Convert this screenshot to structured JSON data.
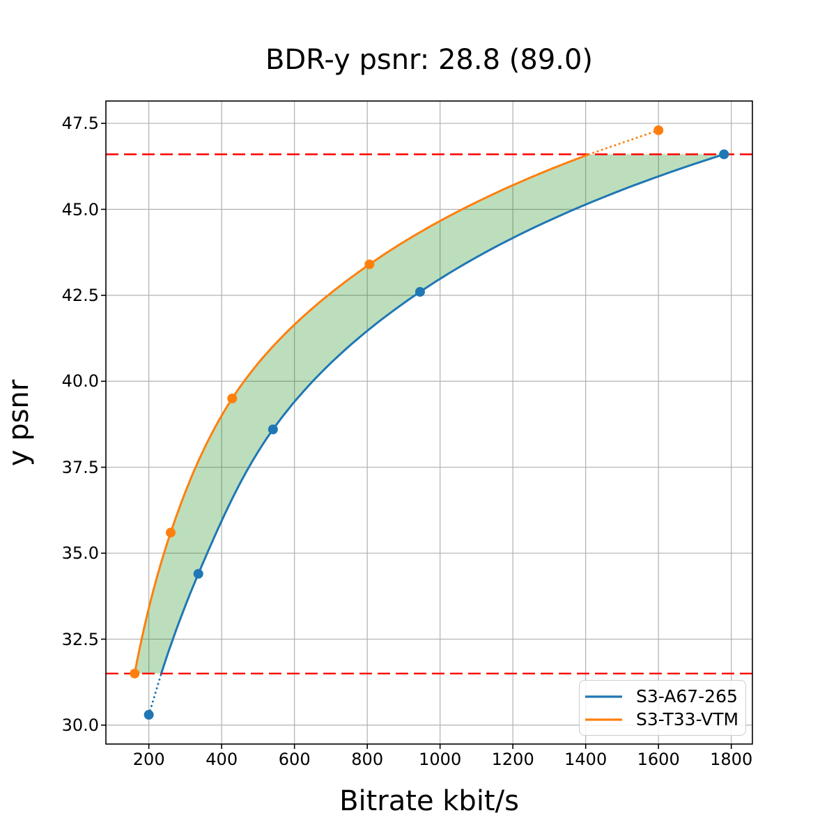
{
  "chart_data": {
    "type": "line",
    "title": "BDR-y psnr: 28.8 (89.0)",
    "xlabel": "Bitrate kbit/s",
    "ylabel": "y psnr",
    "xlim": [
      82,
      1858
    ],
    "ylim": [
      29.45,
      48.15
    ],
    "grid": true,
    "grid_color": "#b0b0b0",
    "axis_color": "#000000",
    "xticks": [
      {
        "value": 200,
        "label": "200"
      },
      {
        "value": 400,
        "label": "400"
      },
      {
        "value": 600,
        "label": "600"
      },
      {
        "value": 800,
        "label": "800"
      },
      {
        "value": 1000,
        "label": "1000"
      },
      {
        "value": 1200,
        "label": "1200"
      },
      {
        "value": 1400,
        "label": "1400"
      },
      {
        "value": 1600,
        "label": "1600"
      },
      {
        "value": 1800,
        "label": "1800"
      }
    ],
    "yticks": [
      {
        "value": 30.0,
        "label": "30.0"
      },
      {
        "value": 32.5,
        "label": "32.5"
      },
      {
        "value": 35.0,
        "label": "35.0"
      },
      {
        "value": 37.5,
        "label": "37.5"
      },
      {
        "value": 40.0,
        "label": "40.0"
      },
      {
        "value": 42.5,
        "label": "42.5"
      },
      {
        "value": 45.0,
        "label": "45.0"
      },
      {
        "value": 47.5,
        "label": "47.5"
      }
    ],
    "series": [
      {
        "name": "S3-A67-265",
        "color": "#1f77b4",
        "marker": "circle",
        "points": [
          [
            200,
            30.3
          ],
          [
            336,
            34.4
          ],
          [
            541,
            38.6
          ],
          [
            945,
            42.6
          ],
          [
            1780,
            46.6
          ]
        ]
      },
      {
        "name": "S3-T33-VTM",
        "color": "#ff7f0e",
        "marker": "circle",
        "points": [
          [
            161,
            31.5
          ],
          [
            260,
            35.6
          ],
          [
            429,
            39.5
          ],
          [
            806,
            43.4
          ],
          [
            1600,
            47.3
          ]
        ]
      }
    ],
    "overlap": {
      "ymin": 31.5,
      "ymax": 46.6,
      "fill_color": "#008000",
      "fill_opacity": 0.26
    },
    "hlines": {
      "values": [
        46.6,
        31.5
      ],
      "color": "#ff0000",
      "style": "dashed"
    },
    "legend": {
      "location": "lower-right"
    }
  }
}
